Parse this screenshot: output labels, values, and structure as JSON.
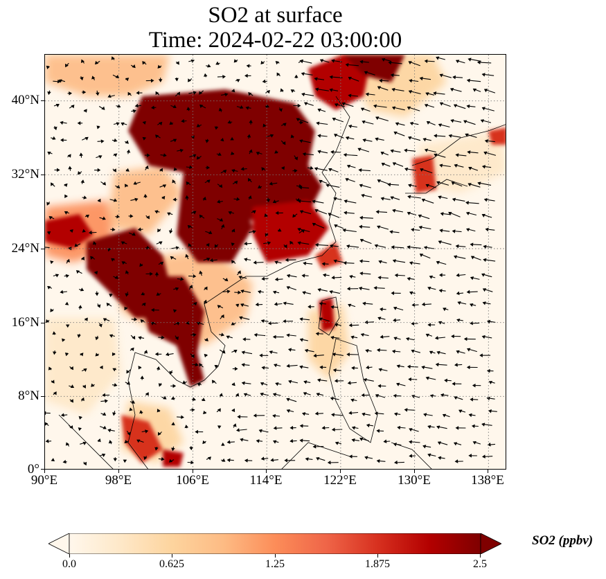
{
  "title": {
    "line1": "SO2 at surface",
    "line2": "Time: 2024-02-22 03:00:00"
  },
  "map": {
    "variable": "SO2",
    "level": "surface",
    "lon_range": [
      90,
      140
    ],
    "lat_range": [
      0,
      45
    ],
    "lat_ticks": [
      "40°N",
      "32°N",
      "24°N",
      "16°N",
      "8°N",
      "0°"
    ],
    "lon_ticks": [
      "90°E",
      "98°E",
      "106°E",
      "114°E",
      "122°E",
      "130°E",
      "138°E"
    ],
    "gridlines": "dotted",
    "overlay": "wind vectors",
    "colors": {
      "low": "#fff7ec",
      "mid": "#fdbb84",
      "high": "#7f0000",
      "coastline": "#000000",
      "vector": "#000000"
    }
  },
  "colorbar": {
    "label": "SO2 (ppbv)",
    "ticks": [
      "0.0",
      "0.625",
      "1.25",
      "1.875",
      "2.5"
    ],
    "range": [
      0,
      2.5
    ],
    "extend": "both",
    "colormap": "OrRd",
    "stops": [
      "#fff7ec",
      "#fee8c8",
      "#fdd49e",
      "#fdbb84",
      "#fc8d59",
      "#ef6548",
      "#d7301f",
      "#b30000",
      "#7f0000"
    ]
  }
}
